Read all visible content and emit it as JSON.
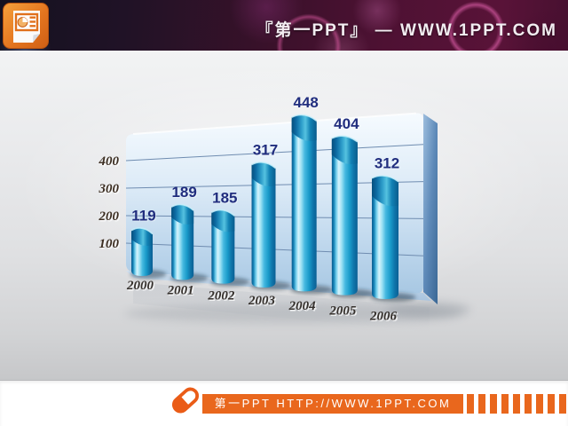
{
  "header": {
    "title": "『第一PPT』 —  WWW.1PPT.COM",
    "logo_icon": "powerpoint-icon"
  },
  "footer": {
    "site_label": "第一PPT HTTP://WWW.1PPT.COM",
    "link_icon": "capsule-link-icon"
  },
  "chart_data": {
    "type": "bar",
    "subtype": "3d-cylinder",
    "title": "",
    "xlabel": "",
    "ylabel": "",
    "categories": [
      "2000",
      "2001",
      "2002",
      "2003",
      "2004",
      "2005",
      "2006"
    ],
    "values": [
      119,
      189,
      185,
      317,
      448,
      404,
      312
    ],
    "yticks": [
      100,
      200,
      300,
      400
    ],
    "ylim": [
      0,
      500
    ],
    "grid": true,
    "legend": null
  },
  "colors": {
    "accent_orange": "#e9671d",
    "value_label_navy": "#202d7e",
    "bar_cyan": "#46b9e0",
    "bar_dark_blue": "#0a5b8e",
    "panel_face_top": "#f6fbff",
    "panel_face_bottom": "#a8c8e3",
    "header_maroon": "#4e1133"
  }
}
